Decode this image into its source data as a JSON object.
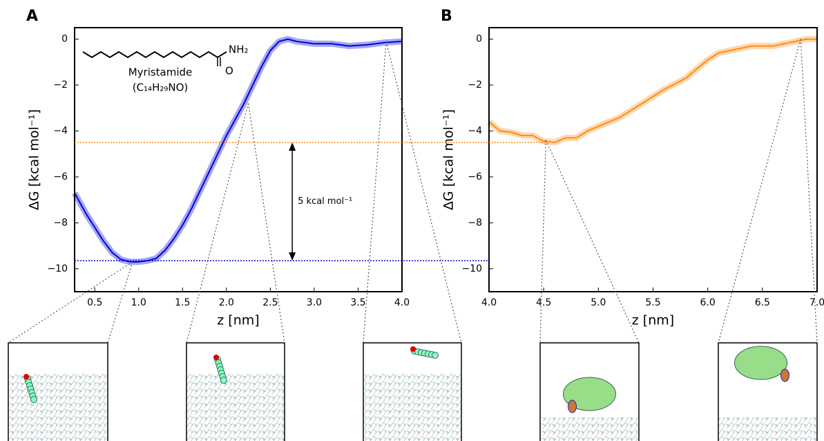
{
  "chart_data": [
    {
      "type": "line",
      "panel_label": "A",
      "xlabel": "z [nm]",
      "ylabel": "ΔG [kcal mol⁻¹]",
      "x": [
        0.27,
        0.4,
        0.5,
        0.6,
        0.7,
        0.8,
        0.9,
        1.0,
        1.1,
        1.2,
        1.3,
        1.4,
        1.5,
        1.6,
        1.7,
        1.8,
        1.9,
        2.0,
        2.1,
        2.2,
        2.3,
        2.4,
        2.5,
        2.6,
        2.7,
        2.8,
        3.0,
        3.2,
        3.4,
        3.6,
        3.8,
        4.0
      ],
      "values": [
        -6.7,
        -7.6,
        -8.2,
        -8.8,
        -9.3,
        -9.6,
        -9.7,
        -9.7,
        -9.65,
        -9.55,
        -9.2,
        -8.7,
        -8.1,
        -7.4,
        -6.6,
        -5.8,
        -5.0,
        -4.2,
        -3.5,
        -2.8,
        -2.0,
        -1.2,
        -0.5,
        -0.1,
        0.0,
        -0.1,
        -0.2,
        -0.2,
        -0.3,
        -0.25,
        -0.15,
        -0.1
      ],
      "color": "#0000e0",
      "xlim": [
        0.27,
        4.0
      ],
      "ylim": [
        -11,
        0.5
      ],
      "xticks": [
        0.5,
        {
          "value": 1,
          "label": "1.0"
        },
        1.5,
        {
          "value": 2,
          "label": "2.0"
        },
        2.5,
        {
          "value": 3,
          "label": "3.0"
        },
        3.5,
        {
          "value": 4,
          "label": "4.0"
        }
      ],
      "yticks": [
        0,
        {
          "value": -2,
          "label": "−2"
        },
        {
          "value": -4,
          "label": "−4"
        },
        {
          "value": -6,
          "label": "−6"
        },
        {
          "value": -8,
          "label": "−8"
        },
        {
          "value": -10,
          "label": "−10"
        }
      ],
      "hlines": [
        {
          "value": -4.5,
          "color": "#ff8c1a"
        },
        {
          "value": -9.65,
          "color": "#0000e0"
        }
      ],
      "annotation": {
        "text": "5 kcal mol⁻¹",
        "x": 2.75
      },
      "molecule": {
        "name": "Myristamide",
        "formula": "(C₁₄H₂₉NO)",
        "amine": "NH₂",
        "oxygen": "O"
      },
      "snapshots": {
        "x": [
          0.93,
          2.25,
          3.82
        ],
        "y": [
          -9.7,
          -2.8,
          -0.1
        ]
      }
    },
    {
      "type": "line",
      "panel_label": "B",
      "xlabel": "z [nm]",
      "ylabel": "ΔG [kcal mol⁻¹]",
      "x": [
        4.0,
        4.1,
        4.2,
        4.3,
        4.4,
        4.5,
        4.6,
        4.7,
        4.8,
        4.9,
        5.0,
        5.2,
        5.4,
        5.6,
        5.8,
        6.0,
        6.1,
        6.2,
        6.4,
        6.6,
        6.8,
        6.9,
        7.0
      ],
      "values": [
        -3.6,
        -4.0,
        -4.05,
        -4.2,
        -4.2,
        -4.45,
        -4.5,
        -4.3,
        -4.3,
        -4.0,
        -3.8,
        -3.4,
        -2.8,
        -2.2,
        -1.7,
        -0.9,
        -0.6,
        -0.5,
        -0.3,
        -0.3,
        -0.1,
        0.0,
        0.0
      ],
      "color": "#ff8c1a",
      "xlim": [
        4.0,
        7.0
      ],
      "ylim": [
        -11,
        0.5
      ],
      "xticks": [
        {
          "value": 4,
          "label": "4.0"
        },
        4.5,
        {
          "value": 5,
          "label": "5.0"
        },
        5.5,
        {
          "value": 6,
          "label": "6.0"
        },
        6.5,
        {
          "value": 7,
          "label": "7.0"
        }
      ],
      "yticks": [
        0,
        {
          "value": -2,
          "label": "−2"
        },
        {
          "value": -4,
          "label": "−4"
        },
        {
          "value": -6,
          "label": "−6"
        },
        {
          "value": -8,
          "label": "−8"
        },
        {
          "value": -10,
          "label": "−10"
        }
      ],
      "snapshots": {
        "x": [
          4.52,
          6.85
        ],
        "y": [
          -4.4,
          0.0
        ]
      }
    }
  ]
}
